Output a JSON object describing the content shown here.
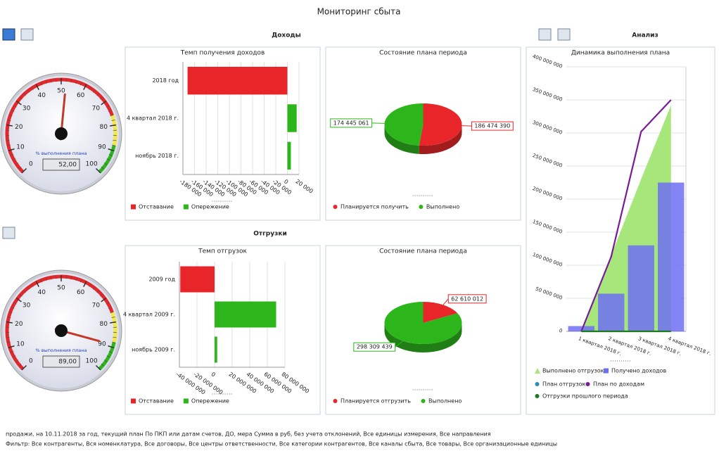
{
  "title": "Мониторинг сбыта",
  "sections": [
    "Доходы",
    "Отгрузки",
    "Анализ"
  ],
  "gauges": [
    {
      "value": 52,
      "value_label": "52,00",
      "label": "% выполнения плана",
      "lim": [
        0,
        100
      ],
      "ticks": [
        0,
        10,
        20,
        30,
        40,
        50,
        60,
        70,
        80,
        90,
        100
      ],
      "ranges": [
        {
          "from": 0,
          "to": 76,
          "color": "#e8262a"
        },
        {
          "from": 76,
          "to": 88,
          "color": "#f4e842"
        },
        {
          "from": 88,
          "to": 100,
          "color": "#2db51c"
        }
      ]
    },
    {
      "value": 89,
      "value_label": "89,00",
      "label": "% выполнения плана",
      "lim": [
        0,
        100
      ],
      "ticks": [
        0,
        10,
        20,
        30,
        40,
        50,
        60,
        70,
        80,
        90,
        100
      ],
      "ranges": [
        {
          "from": 0,
          "to": 76,
          "color": "#e8262a"
        },
        {
          "from": 76,
          "to": 88,
          "color": "#f4e842"
        },
        {
          "from": 88,
          "to": 100,
          "color": "#2db51c"
        }
      ]
    }
  ],
  "chart_data": [
    {
      "type": "hbar",
      "title": "Темп получения доходов",
      "categories": [
        "2018 год",
        "4 квартал 2018 г.",
        "ноябрь 2018 г."
      ],
      "series": [
        {
          "name": "Отставание",
          "color": "#e8262a",
          "values": [
            -172000,
            null,
            null
          ]
        },
        {
          "name": "Опережение",
          "color": "#2db51c",
          "values": [
            null,
            16000,
            6000
          ]
        }
      ],
      "xlim": [
        -180000,
        20000
      ],
      "xticks": [
        {
          "value": -180000,
          "label": "-180 000"
        },
        {
          "value": -160000,
          "label": "-160 000"
        },
        {
          "value": -140000,
          "label": "-140 000"
        },
        {
          "value": -120000,
          "label": "-120 000"
        },
        {
          "value": -100000,
          "label": "-100 000"
        },
        {
          "value": -80000,
          "label": "-80 000"
        },
        {
          "value": -60000,
          "label": "-60 000"
        },
        {
          "value": -40000,
          "label": "-40 000"
        },
        {
          "value": -20000,
          "label": "-20 000"
        },
        0,
        {
          "value": 20000,
          "label": "20 000"
        }
      ],
      "grid": true
    },
    {
      "type": "pie",
      "title": "Состояние плана периода",
      "categories": [
        "Планируется получить",
        "Выполнено"
      ],
      "values": [
        186474390,
        174445061
      ],
      "value_labels": [
        "186 474 390",
        "174 445 061"
      ],
      "colors": [
        "#e8262a",
        "#2db51c"
      ]
    },
    {
      "type": "hbar",
      "title": "Темп отгрузок",
      "categories": [
        "2009 год",
        "4 квартал 2009 г.",
        "ноябрь 2009 г."
      ],
      "series": [
        {
          "name": "Отставание",
          "color": "#e8262a",
          "values": [
            -39000000,
            null,
            null
          ]
        },
        {
          "name": "Опережение",
          "color": "#2db51c",
          "values": [
            null,
            70000000,
            3000000
          ]
        }
      ],
      "xlim": [
        -40000000,
        80000000
      ],
      "xticks": [
        {
          "value": -40000000,
          "label": "-40 000 000"
        },
        {
          "value": -20000000,
          "label": "-20 000 000"
        },
        0,
        {
          "value": 20000000,
          "label": "20 000 000"
        },
        {
          "value": 40000000,
          "label": "40 000 000"
        },
        {
          "value": 60000000,
          "label": "60 000 000"
        },
        {
          "value": 80000000,
          "label": "80 000 000"
        }
      ],
      "grid": true
    },
    {
      "type": "pie",
      "title": "Состояние плана периода",
      "categories": [
        "Планируется отгрузить",
        "Выполнено"
      ],
      "values": [
        62610012,
        298309439
      ],
      "value_labels": [
        "62 610 012",
        "298 309 439"
      ],
      "colors": [
        "#e8262a",
        "#2db51c"
      ]
    },
    {
      "type": "combo",
      "title": "Динамика выполнения плана",
      "categories": [
        "1 квартал 2018 г.",
        "2 квартал 2018 г.",
        "3 квартал 2018 г.",
        "4 квартал 2018 г."
      ],
      "series": [
        {
          "name": "Выполнено отгрузок",
          "kind": "area",
          "color": "#a6e67a",
          "values": [
            0,
            115000000,
            230000000,
            342000000
          ]
        },
        {
          "name": "Получено доходов",
          "kind": "bar",
          "color": "#6f6ff2",
          "values": [
            8000000,
            57000000,
            130000000,
            225000000
          ]
        },
        {
          "name": "План отгрузок",
          "kind": "line",
          "color": "#2a8fb0",
          "values": [
            null,
            null,
            null,
            null
          ]
        },
        {
          "name": "План по доходам",
          "kind": "line",
          "color": "#7a1a9a",
          "values": [
            0,
            113000000,
            302000000,
            350000000
          ]
        },
        {
          "name": "Отгрузки прошлого периода",
          "kind": "line",
          "color": "#1f7a1f",
          "values": [
            0,
            0,
            0,
            0
          ]
        }
      ],
      "ylim": [
        0,
        400000000
      ],
      "yticks": [
        0,
        {
          "value": 50000000,
          "label": "50 000 000"
        },
        {
          "value": 100000000,
          "label": "100 000 000"
        },
        {
          "value": 150000000,
          "label": "150 000 000"
        },
        {
          "value": 200000000,
          "label": "200 000 000"
        },
        {
          "value": 250000000,
          "label": "250 000 000"
        },
        {
          "value": 300000000,
          "label": "300 000 000"
        },
        {
          "value": 350000000,
          "label": "350 000 000"
        },
        {
          "value": 400000000,
          "label": "400 000 000"
        }
      ],
      "grid": true
    }
  ],
  "footer": [
    "продажи, на 10.11.2018 за год, текущий план По ПКП или датам счетов, ДО, мера Сумма в руб, без учета отклонений, Все единицы измерения, Все направления",
    "Фильтр: Все контрагенты, Вся номенклатура, Все договоры, Все центры ответственности, Все категории контрагентов, Все каналы сбыта, Все товары, Все организационные единицы"
  ]
}
